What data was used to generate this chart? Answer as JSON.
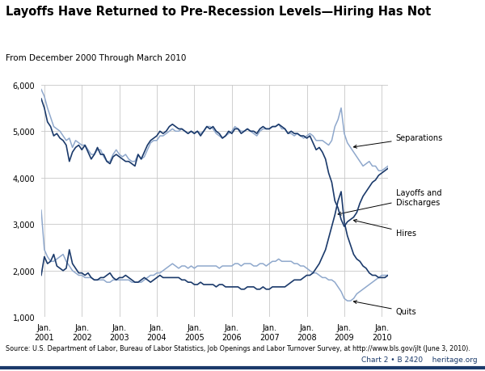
{
  "title": "Layoffs Have Returned to Pre-Recession Levels—Hiring Has Not",
  "subtitle": "From December 2000 Through March 2010",
  "source": "Source: U.S. Department of Labor, Bureau of Labor Statistics, Job Openings and Labor Turnover Survey, at http://www.bls.gov/jlt (June 3, 2010).",
  "chart_label": "Chart 2 • B 2420    heritage.org",
  "ylim": [
    1000,
    6000
  ],
  "yticks": [
    1000,
    2000,
    3000,
    4000,
    5000,
    6000
  ],
  "color_dark": "#1b3a6b",
  "color_light": "#8fa8cc",
  "background": "#ffffff",
  "grid_color": "#c8c8c8",
  "hires": [
    5700,
    5500,
    5200,
    5100,
    4900,
    4950,
    4850,
    4800,
    4700,
    4350,
    4550,
    4650,
    4700,
    4600,
    4700,
    4550,
    4400,
    4500,
    4650,
    4500,
    4500,
    4350,
    4300,
    4450,
    4500,
    4450,
    4400,
    4350,
    4350,
    4300,
    4250,
    4500,
    4400,
    4550,
    4700,
    4800,
    4850,
    4900,
    5000,
    4950,
    5000,
    5100,
    5150,
    5100,
    5050,
    5050,
    5000,
    4950,
    5000,
    4950,
    5000,
    4900,
    5000,
    5100,
    5050,
    5100,
    5000,
    4950,
    4850,
    4900,
    5000,
    4950,
    5050,
    5050,
    4950,
    5000,
    5050,
    5000,
    5000,
    4950,
    5050,
    5100,
    5050,
    5050,
    5100,
    5100,
    5150,
    5100,
    5050,
    4950,
    5000,
    4950,
    4950,
    4900,
    4900,
    4850,
    4900,
    4750,
    4600,
    4650,
    4550,
    4400,
    4100,
    3900,
    3500,
    3350,
    3100,
    2950,
    3050,
    3100,
    3150,
    3250,
    3450,
    3600,
    3700,
    3800,
    3900,
    3950,
    4050,
    4100,
    4150,
    4200
  ],
  "separations": [
    5900,
    5750,
    5500,
    5300,
    5100,
    5050,
    5000,
    4900,
    4800,
    4850,
    4650,
    4800,
    4750,
    4700,
    4700,
    4600,
    4500,
    4500,
    4600,
    4600,
    4450,
    4350,
    4350,
    4500,
    4600,
    4500,
    4450,
    4500,
    4400,
    4350,
    4350,
    4500,
    4400,
    4450,
    4600,
    4750,
    4800,
    4800,
    4900,
    4900,
    4950,
    5000,
    5050,
    5000,
    5000,
    5050,
    5000,
    4950,
    5000,
    4950,
    5000,
    4950,
    5000,
    5100,
    5100,
    5050,
    4950,
    4900,
    4850,
    4900,
    4950,
    5000,
    5100,
    5050,
    5000,
    5000,
    5050,
    5000,
    4950,
    4900,
    5000,
    5050,
    5050,
    5050,
    5100,
    5100,
    5150,
    5050,
    5050,
    4950,
    4950,
    4900,
    4950,
    4900,
    4850,
    4900,
    4950,
    4900,
    4800,
    4800,
    4800,
    4750,
    4700,
    4800,
    5100,
    5250,
    5500,
    4950,
    4750,
    4650,
    4550,
    4450,
    4350,
    4250,
    4300,
    4350,
    4250,
    4250,
    4150,
    4150,
    4200,
    4250
  ],
  "layoffs": [
    1900,
    2300,
    2150,
    2200,
    2350,
    2100,
    2050,
    2000,
    2050,
    2450,
    2150,
    2050,
    1950,
    1950,
    1900,
    1950,
    1850,
    1800,
    1800,
    1850,
    1850,
    1900,
    1950,
    1850,
    1800,
    1850,
    1850,
    1900,
    1850,
    1800,
    1750,
    1750,
    1800,
    1850,
    1800,
    1750,
    1800,
    1850,
    1900,
    1850,
    1850,
    1850,
    1850,
    1850,
    1850,
    1800,
    1800,
    1750,
    1750,
    1700,
    1700,
    1750,
    1700,
    1700,
    1700,
    1700,
    1650,
    1700,
    1700,
    1650,
    1650,
    1650,
    1650,
    1650,
    1600,
    1600,
    1650,
    1650,
    1650,
    1600,
    1600,
    1650,
    1600,
    1600,
    1650,
    1650,
    1650,
    1650,
    1650,
    1700,
    1750,
    1800,
    1800,
    1800,
    1850,
    1900,
    1900,
    1950,
    2050,
    2150,
    2300,
    2450,
    2700,
    2950,
    3200,
    3500,
    3700,
    3050,
    2750,
    2550,
    2350,
    2250,
    2200,
    2100,
    2050,
    1950,
    1900,
    1900,
    1850,
    1850,
    1850,
    1900
  ],
  "quits": [
    3300,
    2450,
    2300,
    2200,
    2200,
    2250,
    2300,
    2350,
    2200,
    2100,
    2000,
    1950,
    1900,
    1900,
    1850,
    1850,
    1850,
    1800,
    1800,
    1800,
    1800,
    1750,
    1750,
    1800,
    1800,
    1800,
    1800,
    1800,
    1800,
    1750,
    1750,
    1750,
    1750,
    1800,
    1850,
    1900,
    1900,
    1950,
    1950,
    2000,
    2050,
    2100,
    2150,
    2100,
    2050,
    2100,
    2100,
    2050,
    2100,
    2050,
    2100,
    2100,
    2100,
    2100,
    2100,
    2100,
    2100,
    2050,
    2100,
    2100,
    2100,
    2100,
    2150,
    2150,
    2100,
    2150,
    2150,
    2150,
    2100,
    2100,
    2150,
    2150,
    2100,
    2150,
    2200,
    2200,
    2250,
    2200,
    2200,
    2200,
    2200,
    2150,
    2150,
    2100,
    2100,
    2050,
    2000,
    1950,
    1950,
    1900,
    1850,
    1850,
    1800,
    1800,
    1750,
    1650,
    1550,
    1400,
    1350,
    1350,
    1400,
    1500,
    1550,
    1600,
    1650,
    1700,
    1750,
    1800,
    1850,
    1900,
    1900,
    1900
  ]
}
